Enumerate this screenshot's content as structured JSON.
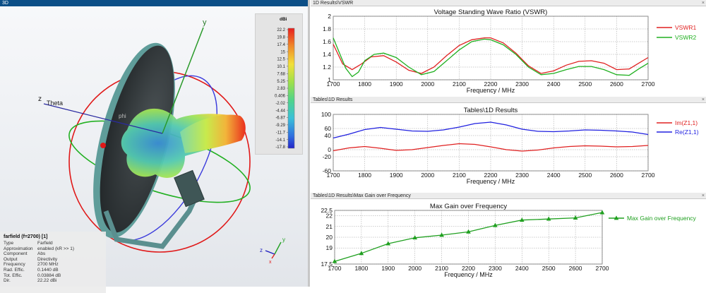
{
  "panes": {
    "view3d": {
      "title": "3D"
    },
    "vswr": {
      "title": "1D Results\\VSWR"
    },
    "z": {
      "title": "Tables\\1D Results"
    },
    "gain": {
      "title": "Tables\\1D Results\\Max Gain over Frequency"
    }
  },
  "close_label": "×",
  "view3d": {
    "axis_labels": {
      "x": "x",
      "y": "y",
      "z": "z",
      "theta": "Theta",
      "phi": "phi"
    },
    "triad": {
      "x": "x",
      "y": "y",
      "z": "z"
    },
    "colors": {
      "ring_red": "#e01818",
      "ring_green": "#22b022",
      "ring_blue": "#3a3adc",
      "dish": "#33383b",
      "feed": "#5a8f8f"
    },
    "scale": {
      "unit": "dBi",
      "ticks": [
        "22.2",
        "19.8",
        "17.4",
        "15",
        "12.5",
        "10.1",
        "7.68",
        "5.25",
        "2.83",
        "0.406",
        "-2.02",
        "-4.44",
        "-6.87",
        "-9.29",
        "-11.7",
        "-14.1",
        "-17.8"
      ]
    },
    "info": {
      "title": "farfield (f=2700) [1]",
      "rows": [
        {
          "k": "Type",
          "v": "Farfield"
        },
        {
          "k": "Approximation",
          "v": "enabled (kR >> 1)"
        },
        {
          "k": "Component",
          "v": "Abs"
        },
        {
          "k": "Output",
          "v": "Directivity"
        },
        {
          "k": "Frequency",
          "v": "2700 MHz"
        },
        {
          "k": "Rad. Effic.",
          "v": "0.1440 dB"
        },
        {
          "k": "Tot. Effic.",
          "v": "0.03884 dB"
        },
        {
          "k": "Dir.",
          "v": "22.22 dBi"
        }
      ]
    }
  },
  "chart_data": [
    {
      "type": "line",
      "title": "Voltage Standing Wave Ratio (VSWR)",
      "xlabel": "Frequency / MHz",
      "ylabel": "",
      "xlim": [
        1700,
        2700
      ],
      "ylim": [
        1,
        2
      ],
      "xticks": [
        1700,
        1800,
        1900,
        2000,
        2100,
        2200,
        2300,
        2400,
        2500,
        2600,
        2700
      ],
      "xtick_labels": [
        "1700",
        "1800",
        "1900",
        "2000",
        "2100",
        "2200",
        "2300",
        "2400",
        "2500",
        "2600",
        "2700"
      ],
      "yticks": [
        1,
        1.2,
        1.4,
        1.6,
        1.8,
        2
      ],
      "ytick_labels": [
        "1",
        "1.2",
        "1.4",
        "1.6",
        "1.8",
        "2"
      ],
      "grid": true,
      "legend": "right",
      "series": [
        {
          "name": "VSWR1",
          "color": "#e02020",
          "x": [
            1700,
            1730,
            1760,
            1790,
            1820,
            1860,
            1900,
            1940,
            1980,
            2020,
            2060,
            2100,
            2140,
            2180,
            2200,
            2240,
            2280,
            2320,
            2360,
            2400,
            2440,
            2480,
            2520,
            2560,
            2600,
            2640,
            2670,
            2700
          ],
          "y": [
            1.56,
            1.25,
            1.16,
            1.25,
            1.36,
            1.38,
            1.28,
            1.15,
            1.1,
            1.2,
            1.38,
            1.54,
            1.63,
            1.66,
            1.66,
            1.58,
            1.42,
            1.22,
            1.1,
            1.14,
            1.23,
            1.29,
            1.3,
            1.26,
            1.16,
            1.17,
            1.26,
            1.35
          ]
        },
        {
          "name": "VSWR2",
          "color": "#20b020",
          "x": [
            1700,
            1720,
            1740,
            1760,
            1780,
            1800,
            1830,
            1860,
            1900,
            1940,
            1980,
            2020,
            2060,
            2100,
            2140,
            2180,
            2200,
            2240,
            2280,
            2320,
            2360,
            2400,
            2440,
            2480,
            2520,
            2560,
            2600,
            2640,
            2670,
            2700
          ],
          "y": [
            1.66,
            1.42,
            1.18,
            1.05,
            1.12,
            1.3,
            1.4,
            1.42,
            1.35,
            1.2,
            1.08,
            1.13,
            1.3,
            1.47,
            1.6,
            1.64,
            1.63,
            1.55,
            1.4,
            1.2,
            1.08,
            1.1,
            1.16,
            1.21,
            1.21,
            1.16,
            1.08,
            1.07,
            1.17,
            1.26
          ]
        }
      ]
    },
    {
      "type": "line",
      "title": "Tables\\1D Results",
      "xlabel": "Frequency / MHz",
      "ylabel": "",
      "xlim": [
        1700,
        2700
      ],
      "ylim": [
        -60,
        100
      ],
      "xticks": [
        1700,
        1800,
        1900,
        2000,
        2100,
        2200,
        2300,
        2400,
        2500,
        2600,
        2700
      ],
      "xtick_labels": [
        "1700",
        "1800",
        "1900",
        "2000",
        "2100",
        "2200",
        "2300",
        "2400",
        "2500",
        "2600",
        "2700"
      ],
      "yticks": [
        -60,
        -20,
        0,
        40,
        60,
        100
      ],
      "ytick_labels": [
        "-60",
        "-20",
        "0",
        "40",
        "60",
        "100"
      ],
      "grid": true,
      "legend": "right",
      "series": [
        {
          "name": "Im(Z1,1)",
          "color": "#e02020",
          "x": [
            1700,
            1750,
            1800,
            1850,
            1900,
            1950,
            2000,
            2050,
            2100,
            2150,
            2200,
            2250,
            2300,
            2350,
            2400,
            2450,
            2500,
            2550,
            2600,
            2650,
            2700
          ],
          "y": [
            -3,
            5,
            9,
            4,
            -2,
            0,
            6,
            12,
            17,
            15,
            8,
            0,
            -4,
            -1,
            5,
            9,
            11,
            10,
            8,
            9,
            12
          ]
        },
        {
          "name": "Re(Z1,1)",
          "color": "#2020e0",
          "x": [
            1700,
            1750,
            1800,
            1850,
            1900,
            1950,
            2000,
            2050,
            2100,
            2150,
            2200,
            2250,
            2300,
            2350,
            2400,
            2450,
            2500,
            2550,
            2600,
            2650,
            2700
          ],
          "y": [
            33,
            44,
            57,
            63,
            58,
            53,
            52,
            56,
            64,
            74,
            78,
            70,
            58,
            52,
            51,
            53,
            56,
            55,
            53,
            50,
            43
          ]
        }
      ]
    },
    {
      "type": "line",
      "title": "Max Gain over Frequency",
      "xlabel": "Frequency / MHz",
      "ylabel": "",
      "xlim": [
        1700,
        2700
      ],
      "ylim": [
        17.5,
        22.5
      ],
      "xticks": [
        1700,
        1800,
        1900,
        2000,
        2100,
        2200,
        2300,
        2400,
        2500,
        2600,
        2700
      ],
      "xtick_labels": [
        "1700",
        "1800",
        "1900",
        "2000",
        "2100",
        "2200",
        "2300",
        "2400",
        "2500",
        "2600",
        "2700"
      ],
      "yticks": [
        17.5,
        19,
        20,
        21,
        22,
        22.5
      ],
      "ytick_labels": [
        "17.5",
        "19",
        "20",
        "21",
        "22",
        "22.5"
      ],
      "grid": true,
      "legend": "right",
      "markers": "triangle",
      "series": [
        {
          "name": "Max Gain over Frequency",
          "color": "#20a020",
          "x": [
            1700,
            1800,
            1900,
            2000,
            2100,
            2200,
            2300,
            2400,
            2500,
            2600,
            2700
          ],
          "y": [
            17.75,
            18.5,
            19.4,
            19.95,
            20.2,
            20.5,
            21.1,
            21.6,
            21.7,
            21.8,
            22.3
          ]
        }
      ]
    }
  ]
}
